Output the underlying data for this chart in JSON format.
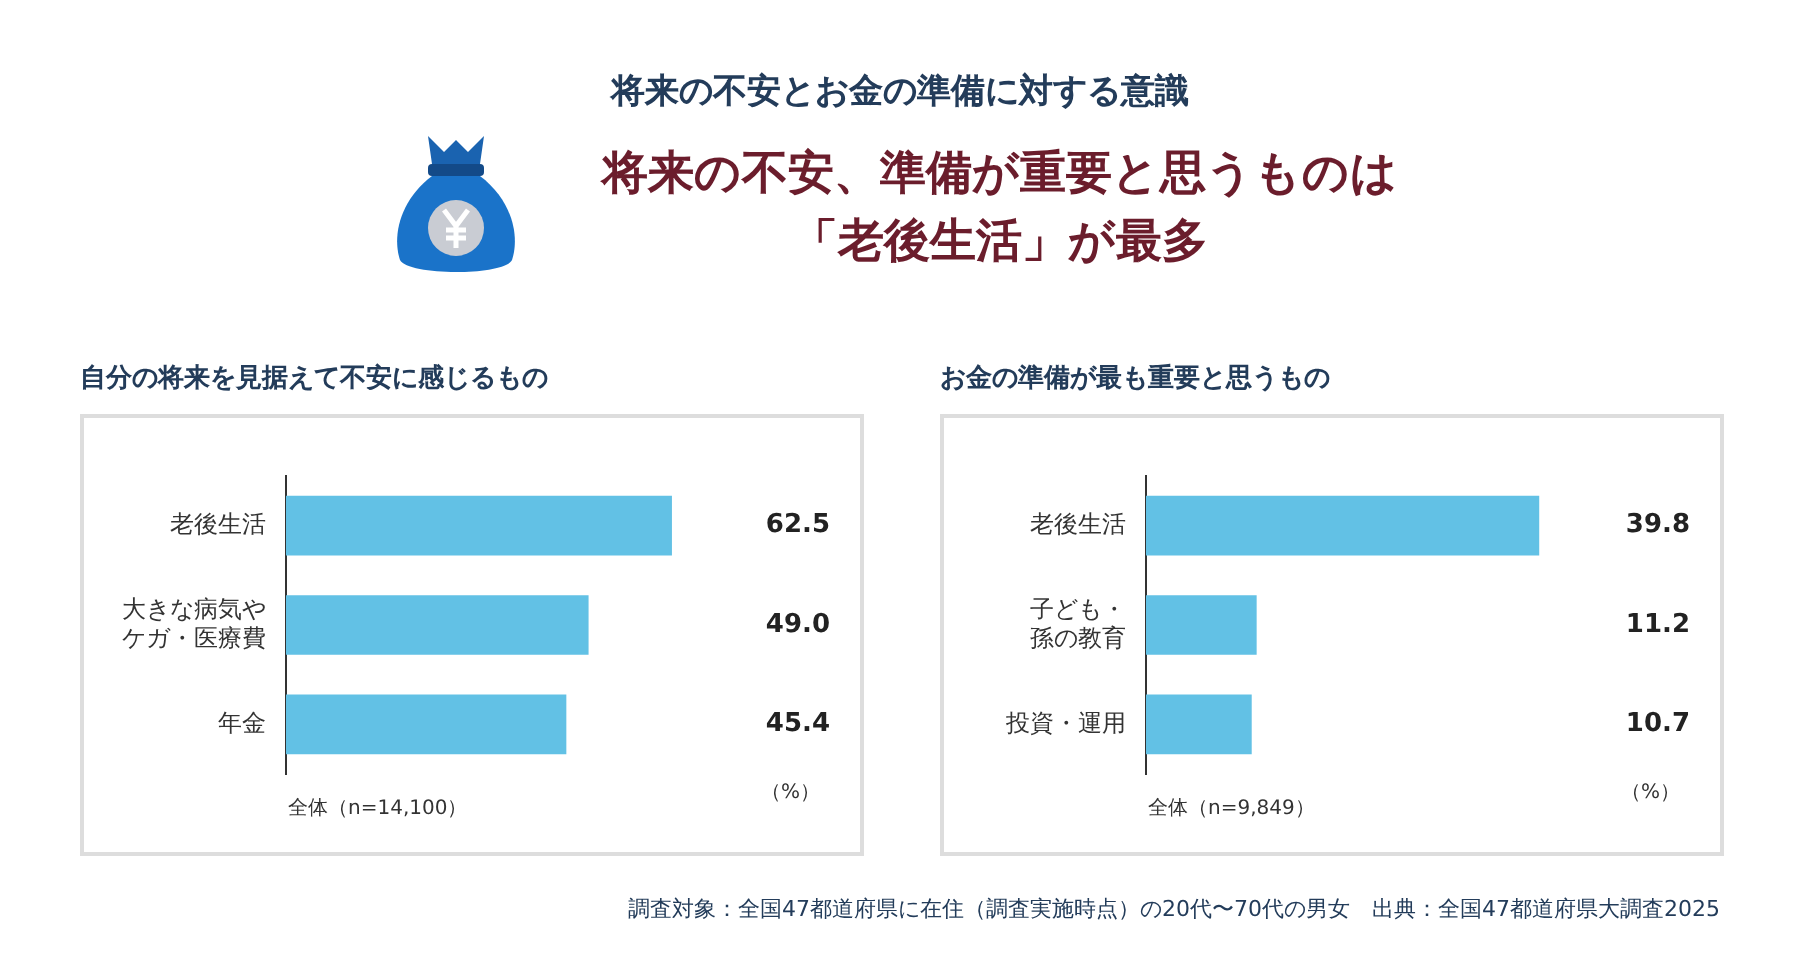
{
  "chart_data": [
    {
      "type": "other",
      "title": "将来の不安とお金の準備に対する意識",
      "subtitle": "将来の不安、準備が重要と思うものは「老後生活」が最多",
      "annotations": [
        "調査対象：全国47都道府県に在住（調査実施時点）の20代〜70代の男女　出典：全国47都道府県大調査2025"
      ]
    },
    {
      "type": "bar",
      "orientation": "horizontal",
      "title": "自分の将来を見据えて不安に感じるもの",
      "categories": [
        "老後生活",
        "大きな病気やケガ・医療費",
        "年金"
      ],
      "values": [
        62.5,
        49.0,
        45.4
      ],
      "value_labels": [
        "62.5",
        "49.0",
        "45.4"
      ],
      "color": "#62c1e5",
      "tick_labels": "y",
      "annotations": [
        "全体（n=14,100）",
        "（%）"
      ]
    },
    {
      "type": "bar",
      "orientation": "horizontal",
      "title": "お金の準備が最も重要と思うもの",
      "categories": [
        "老後生活",
        "子ども・孫の教育",
        "投資・運用"
      ],
      "values": [
        39.8,
        11.2,
        10.7
      ],
      "value_labels": [
        "39.8",
        "11.2",
        "10.7"
      ],
      "color": "#62c1e5",
      "tick_labels": "y",
      "annotations": [
        "全体（n=9,849）",
        "（%）"
      ]
    }
  ]
}
